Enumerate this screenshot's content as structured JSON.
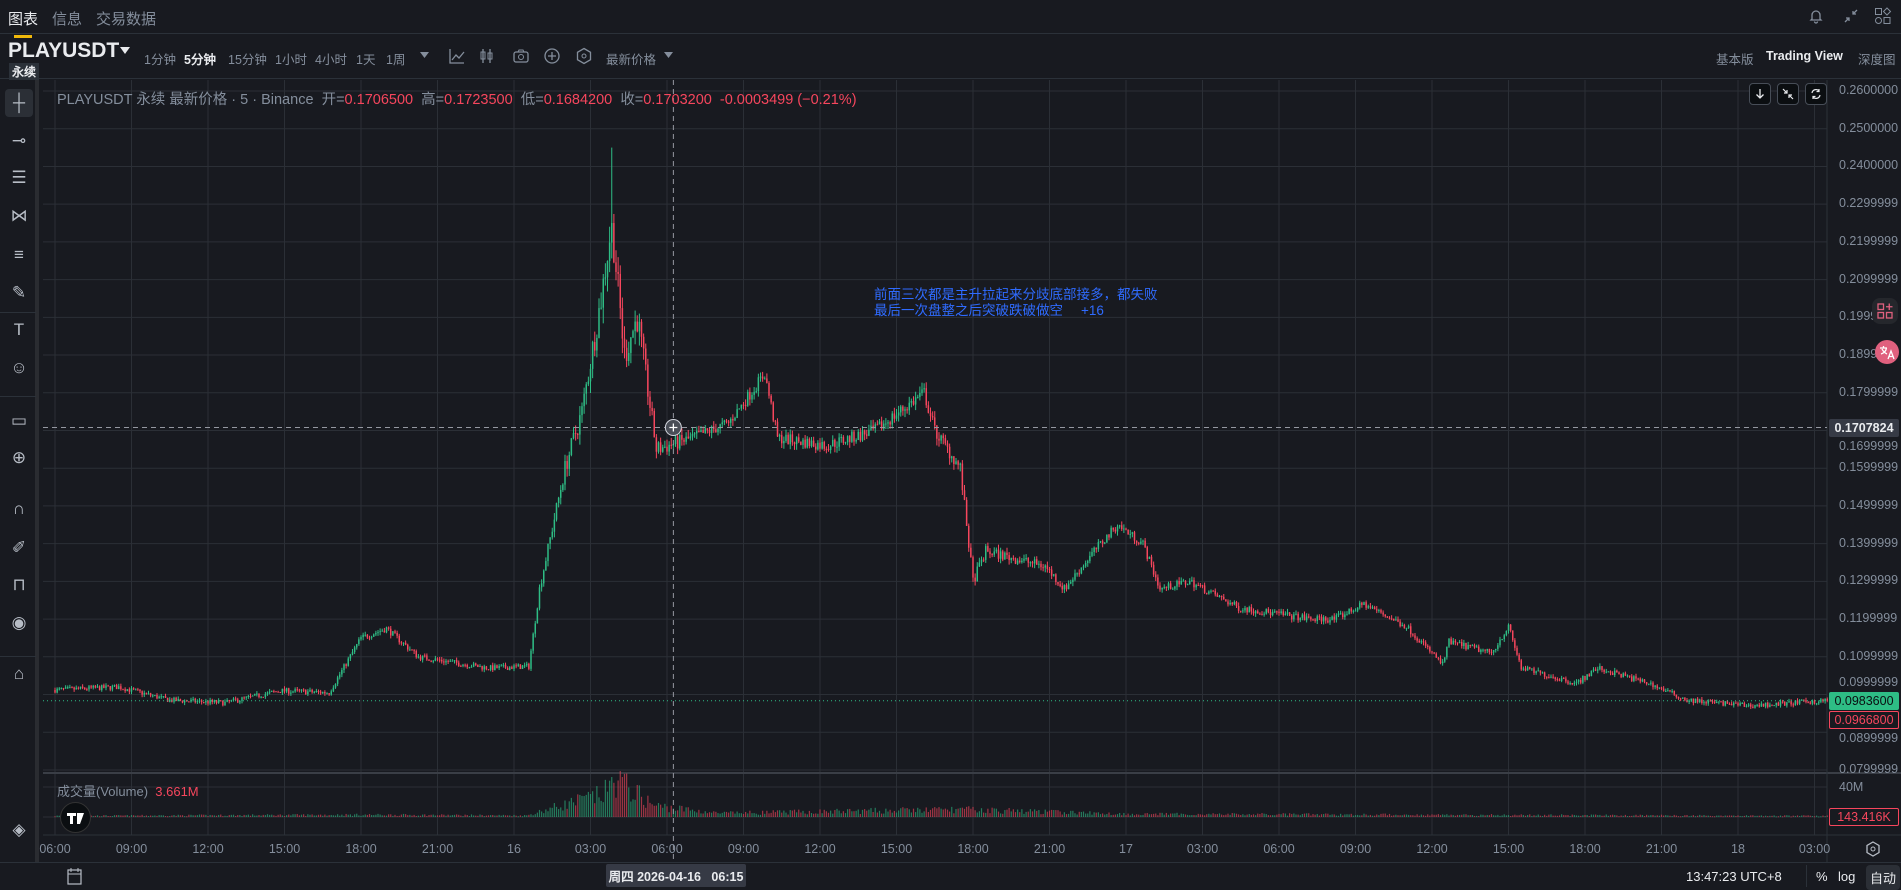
{
  "top_tabs": [
    {
      "label": "图表",
      "active": true
    },
    {
      "label": "信息"
    },
    {
      "label": "交易数据"
    }
  ],
  "top_icons": [
    "bell-icon",
    "collapse-icon",
    "apps-icon"
  ],
  "symbol": {
    "name": "PLAYUSDT",
    "type": "永续"
  },
  "intervals": [
    {
      "label": "1分钟"
    },
    {
      "label": "5分钟",
      "active": true
    },
    {
      "label": "15分钟"
    },
    {
      "label": "1小时"
    },
    {
      "label": "4小时"
    },
    {
      "label": "1天"
    },
    {
      "label": "1周"
    }
  ],
  "toolbar_icons": [
    "more-intervals-chevron-icon",
    "indicators-icon",
    "chart-type-icon",
    "screenshot-icon",
    "add-icon",
    "settings-hex-icon"
  ],
  "price_type": "最新价格",
  "views": [
    {
      "label": "基本版"
    },
    {
      "label": "Trading View",
      "active": true
    },
    {
      "label": "深度图"
    }
  ],
  "left_tools": [
    "crosshair-icon",
    "trend-line-icon",
    "horizontal-lines-icon",
    "pattern-icon",
    "fib-icon",
    "brush-icon",
    "text-icon",
    "emoji-icon",
    "ruler-icon",
    "zoom-in-icon",
    "magnet-icon",
    "lock-draw-icon",
    "unlock-icon",
    "eye-icon",
    "trash-icon",
    "layers-icon"
  ],
  "legend": {
    "title": "PLAYUSDT 永续 最新价格 · 5 · Binance",
    "open_label": "开=",
    "open": "0.1706500",
    "high_label": "高=",
    "high": "0.1723500",
    "low_label": "低=",
    "low": "0.1684200",
    "close_label": "收=",
    "close": "0.1703200",
    "change": "-0.0003499 (−0.21%)"
  },
  "annotation": {
    "line1": "前面三次都是主升拉起来分歧底部接多，都失败",
    "line2": "最后一次盘整之后突破跌破做空",
    "count": "+16"
  },
  "volume": {
    "label": "成交量(Volume)",
    "value": "3.661M",
    "axis_label": "40M",
    "current": "143.416K"
  },
  "crosshair": {
    "price": "0.1707824",
    "time": "周四 2026-04-16   06:15"
  },
  "price_badges": {
    "last": "0.0983600",
    "mark": "0.0966800"
  },
  "colors": {
    "up": "#2ebd85",
    "down": "#f6465d",
    "background": "#181a20",
    "grid": "#2b2f36",
    "annotation": "#2f6bff",
    "accent": "#f0b90b"
  },
  "bottom": {
    "clock": "13:47:23 UTC+8",
    "percent": "%",
    "log": "log",
    "auto": "自动"
  },
  "chart_data": {
    "type": "candlestick",
    "interval": "5m",
    "y_ticks": [
      "0.2600000",
      "0.2500000",
      "0.2400000",
      "0.2299999",
      "0.2199999",
      "0.2099999",
      "0.1999999",
      "0.1899999",
      "0.1799999",
      "0.1699999",
      "0.1599999",
      "0.1499999",
      "0.1399999",
      "0.1299999",
      "0.1199999",
      "0.1099999",
      "0.0999999",
      "0.0899999",
      "0.0799999"
    ],
    "ylim": [
      0.08,
      0.26
    ],
    "x_ticks": [
      "06:00",
      "09:00",
      "12:00",
      "15:00",
      "18:00",
      "21:00",
      "16",
      "03:00",
      "06:00",
      "09:00",
      "12:00",
      "15:00",
      "18:00",
      "21:00",
      "17",
      "03:00",
      "06:00",
      "09:00",
      "12:00",
      "15:00",
      "18:00",
      "21:00",
      "18",
      "03:00"
    ],
    "x_start": "2026-04-15 06:00",
    "x_tick_step_hours": 3,
    "x_end": "2026-04-18 03:30",
    "approx_price_path": [
      [
        "2026-04-15 06:00",
        0.1012
      ],
      [
        "2026-04-15 08:30",
        0.102
      ],
      [
        "2026-04-15 10:30",
        0.0985
      ],
      [
        "2026-04-15 12:40",
        0.0978
      ],
      [
        "2026-04-15 14:50",
        0.101
      ],
      [
        "2026-04-15 16:45",
        0.1005
      ],
      [
        "2026-04-15 18:00",
        0.115
      ],
      [
        "2026-04-15 19:00",
        0.1175
      ],
      [
        "2026-04-15 20:15",
        0.11
      ],
      [
        "2026-04-15 23:00",
        0.107
      ],
      [
        "2026-04-16 00:35",
        0.1075
      ],
      [
        "2026-04-16 01:00",
        0.128
      ],
      [
        "2026-04-16 02:00",
        0.16
      ],
      [
        "2026-04-16 02:40",
        0.175
      ],
      [
        "2026-04-16 03:25",
        0.205
      ],
      [
        "2026-04-16 03:50",
        0.225
      ],
      [
        "2026-04-16 04:20",
        0.19
      ],
      [
        "2026-04-16 04:50",
        0.2
      ],
      [
        "2026-04-16 05:35",
        0.165
      ],
      [
        "2026-04-16 07:00",
        0.168
      ],
      [
        "2026-04-16 08:25",
        0.172
      ],
      [
        "2026-04-16 09:50",
        0.185
      ],
      [
        "2026-04-16 10:20",
        0.168
      ],
      [
        "2026-04-16 12:15",
        0.166
      ],
      [
        "2026-04-16 14:10",
        0.17
      ],
      [
        "2026-04-16 16:05",
        0.18
      ],
      [
        "2026-04-16 16:30",
        0.17
      ],
      [
        "2026-04-16 17:30",
        0.16
      ],
      [
        "2026-04-16 18:00",
        0.13
      ],
      [
        "2026-04-16 18:30",
        0.138
      ],
      [
        "2026-04-16 20:50",
        0.134
      ],
      [
        "2026-04-16 21:35",
        0.128
      ],
      [
        "2026-04-16 22:45",
        0.138
      ],
      [
        "2026-04-16 23:40",
        0.145
      ],
      [
        "2026-04-17 00:40",
        0.14
      ],
      [
        "2026-04-17 01:20",
        0.128
      ],
      [
        "2026-04-17 02:30",
        0.13
      ],
      [
        "2026-04-17 04:25",
        0.123
      ],
      [
        "2026-04-17 07:15",
        0.12
      ],
      [
        "2026-04-17 08:10",
        0.12
      ],
      [
        "2026-04-17 09:20",
        0.124
      ],
      [
        "2026-04-17 11:00",
        0.118
      ],
      [
        "2026-04-17 12:25",
        0.108
      ],
      [
        "2026-04-17 12:40",
        0.114
      ],
      [
        "2026-04-17 14:20",
        0.111
      ],
      [
        "2026-04-17 15:00",
        0.118
      ],
      [
        "2026-04-17 15:30",
        0.107
      ],
      [
        "2026-04-17 17:40",
        0.103
      ],
      [
        "2026-04-17 18:30",
        0.107
      ],
      [
        "2026-04-17 20:30",
        0.103
      ],
      [
        "2026-04-17 22:00",
        0.0985
      ],
      [
        "2026-04-18 00:30",
        0.097
      ],
      [
        "2026-04-18 03:30",
        0.0984
      ]
    ],
    "peak_high": 0.245,
    "approx_volume_path_M": [
      [
        "2026-04-15 06:00",
        1.5
      ],
      [
        "2026-04-15 18:00",
        3
      ],
      [
        "2026-04-16 00:30",
        2
      ],
      [
        "2026-04-16 01:30",
        12
      ],
      [
        "2026-04-16 03:30",
        30
      ],
      [
        "2026-04-16 04:00",
        50
      ],
      [
        "2026-04-16 05:30",
        15
      ],
      [
        "2026-04-16 08:00",
        5
      ],
      [
        "2026-04-16 17:30",
        10
      ],
      [
        "2026-04-17 00:00",
        4
      ],
      [
        "2026-04-18 03:30",
        1.5
      ]
    ],
    "volume_ylim_M": [
      0,
      40
    ]
  }
}
